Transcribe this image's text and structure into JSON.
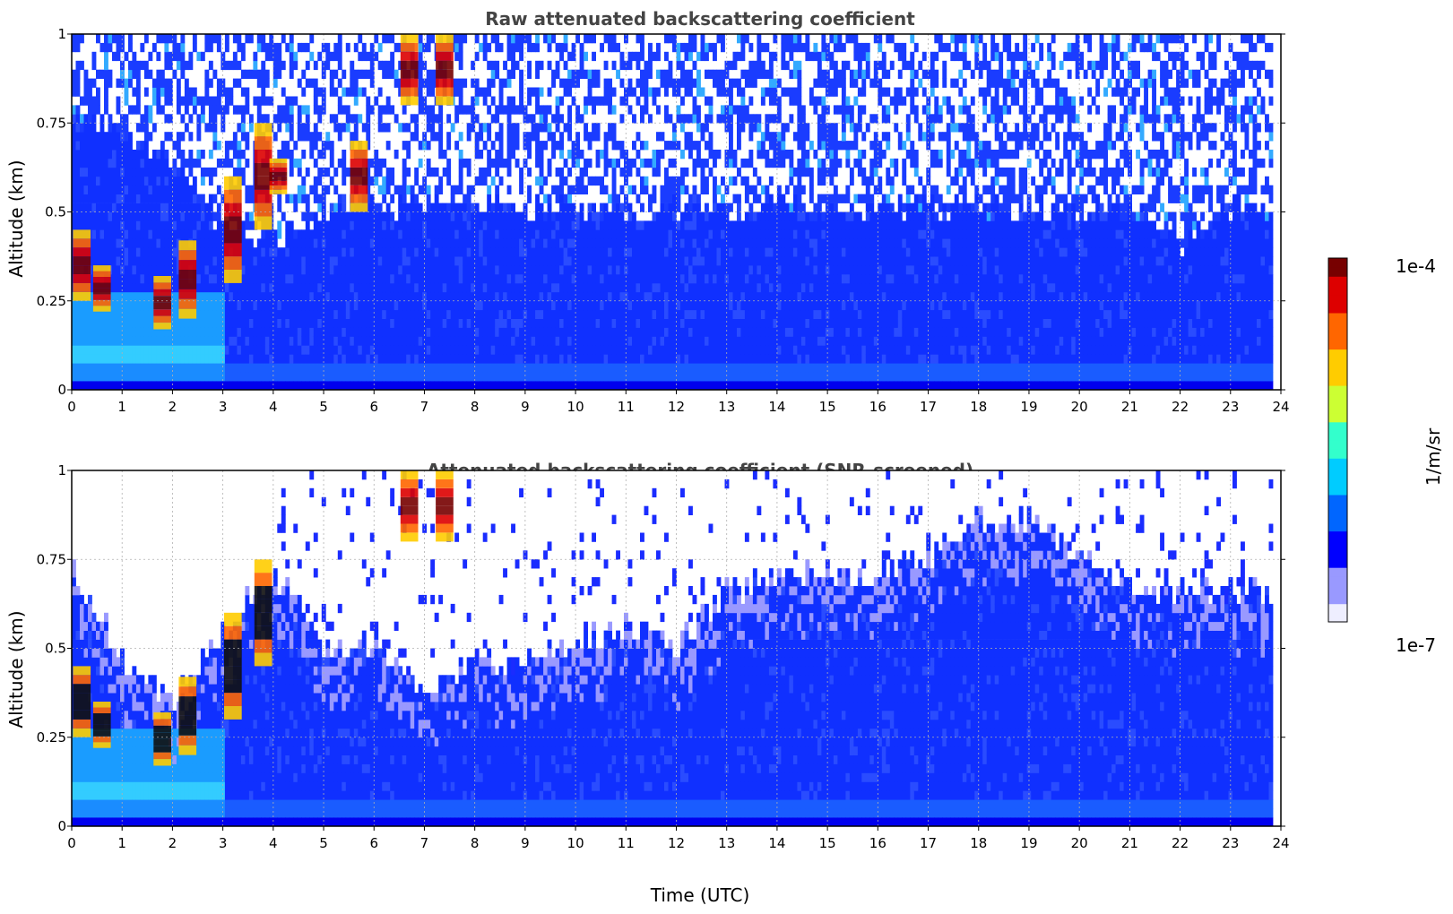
{
  "colors": {
    "background": "#ffffff",
    "title": "#444444",
    "grid": "#b0b0b0",
    "colormap": [
      "#eeeeff",
      "#9999ff",
      "#0000ff",
      "#0066ff",
      "#00ccff",
      "#33ffcc",
      "#ccff33",
      "#ffcc00",
      "#ff6600",
      "#dd0000",
      "#770000"
    ]
  },
  "chart_data": [
    {
      "type": "heatmap",
      "title": "Raw attenuated backscattering coefficient",
      "xlabel": "",
      "ylabel": "Altitude (km)",
      "xlim": [
        0,
        24
      ],
      "ylim": [
        0,
        1
      ],
      "x_ticks": [
        "0",
        "1",
        "2",
        "3",
        "4",
        "5",
        "6",
        "7",
        "8",
        "9",
        "10",
        "11",
        "12",
        "13",
        "14",
        "15",
        "16",
        "17",
        "18",
        "19",
        "20",
        "21",
        "22",
        "23",
        "24"
      ],
      "y_ticks": [
        "0",
        "0.25",
        "0.5",
        "0.75",
        "1"
      ],
      "grid": true,
      "data_end_time": 23.8,
      "colorbar_range": [
        "1e-7",
        "1e-4"
      ],
      "features": {
        "aerosol_layer_top_km": [
          0.75,
          0.7,
          0.6,
          0.45,
          0.4,
          0.5,
          0.5,
          0.5,
          0.5,
          0.5,
          0.5,
          0.5,
          0.5,
          0.5,
          0.5,
          0.5,
          0.5,
          0.5,
          0.5,
          0.5,
          0.5,
          0.5,
          0.4,
          0.5,
          0.5
        ],
        "cloud_layer": [
          {
            "time": 0.2,
            "base_km": 0.25,
            "top_km": 0.45
          },
          {
            "time": 0.6,
            "base_km": 0.22,
            "top_km": 0.35
          },
          {
            "time": 1.8,
            "base_km": 0.17,
            "top_km": 0.32
          },
          {
            "time": 2.3,
            "base_km": 0.2,
            "top_km": 0.42
          },
          {
            "time": 3.2,
            "base_km": 0.3,
            "top_km": 0.6
          },
          {
            "time": 3.8,
            "base_km": 0.45,
            "top_km": 0.75
          },
          {
            "time": 4.1,
            "base_km": 0.55,
            "top_km": 0.65
          },
          {
            "time": 5.7,
            "base_km": 0.5,
            "top_km": 0.7
          },
          {
            "time": 6.7,
            "base_km": 0.8,
            "top_km": 1.0
          },
          {
            "time": 7.4,
            "base_km": 0.8,
            "top_km": 1.0
          }
        ]
      }
    },
    {
      "type": "heatmap",
      "title": "Attenuated backscattering coefficient (SNR-screened)",
      "xlabel": "Time (UTC)",
      "ylabel": "Altitude (km)",
      "xlim": [
        0,
        24
      ],
      "ylim": [
        0,
        1
      ],
      "x_ticks": [
        "0",
        "1",
        "2",
        "3",
        "4",
        "5",
        "6",
        "7",
        "8",
        "9",
        "10",
        "11",
        "12",
        "13",
        "14",
        "15",
        "16",
        "17",
        "18",
        "19",
        "20",
        "21",
        "22",
        "23",
        "24"
      ],
      "y_ticks": [
        "0",
        "0.25",
        "0.5",
        "0.75",
        "1"
      ],
      "grid": true,
      "data_end_time": 23.8,
      "colorbar_range": [
        "1e-7",
        "1e-4"
      ],
      "features": {
        "signal_top_km": [
          0.7,
          0.45,
          0.35,
          0.55,
          0.7,
          0.5,
          0.5,
          0.35,
          0.45,
          0.45,
          0.5,
          0.55,
          0.5,
          0.65,
          0.7,
          0.7,
          0.7,
          0.75,
          0.85,
          0.85,
          0.75,
          0.65,
          0.65,
          0.65,
          0.65
        ],
        "cloud_layer": [
          {
            "time": 0.2,
            "base_km": 0.25,
            "top_km": 0.45
          },
          {
            "time": 0.6,
            "base_km": 0.22,
            "top_km": 0.35
          },
          {
            "time": 1.8,
            "base_km": 0.17,
            "top_km": 0.32
          },
          {
            "time": 2.3,
            "base_km": 0.2,
            "top_km": 0.42
          },
          {
            "time": 3.2,
            "base_km": 0.3,
            "top_km": 0.6
          },
          {
            "time": 3.8,
            "base_km": 0.45,
            "top_km": 0.75
          },
          {
            "time": 6.7,
            "base_km": 0.8,
            "top_km": 1.0
          },
          {
            "time": 7.4,
            "base_km": 0.8,
            "top_km": 1.0
          }
        ]
      }
    }
  ],
  "colorbar": {
    "max_label": "1e-4",
    "min_label": "1e-7",
    "unit_label": "1/m/sr"
  }
}
